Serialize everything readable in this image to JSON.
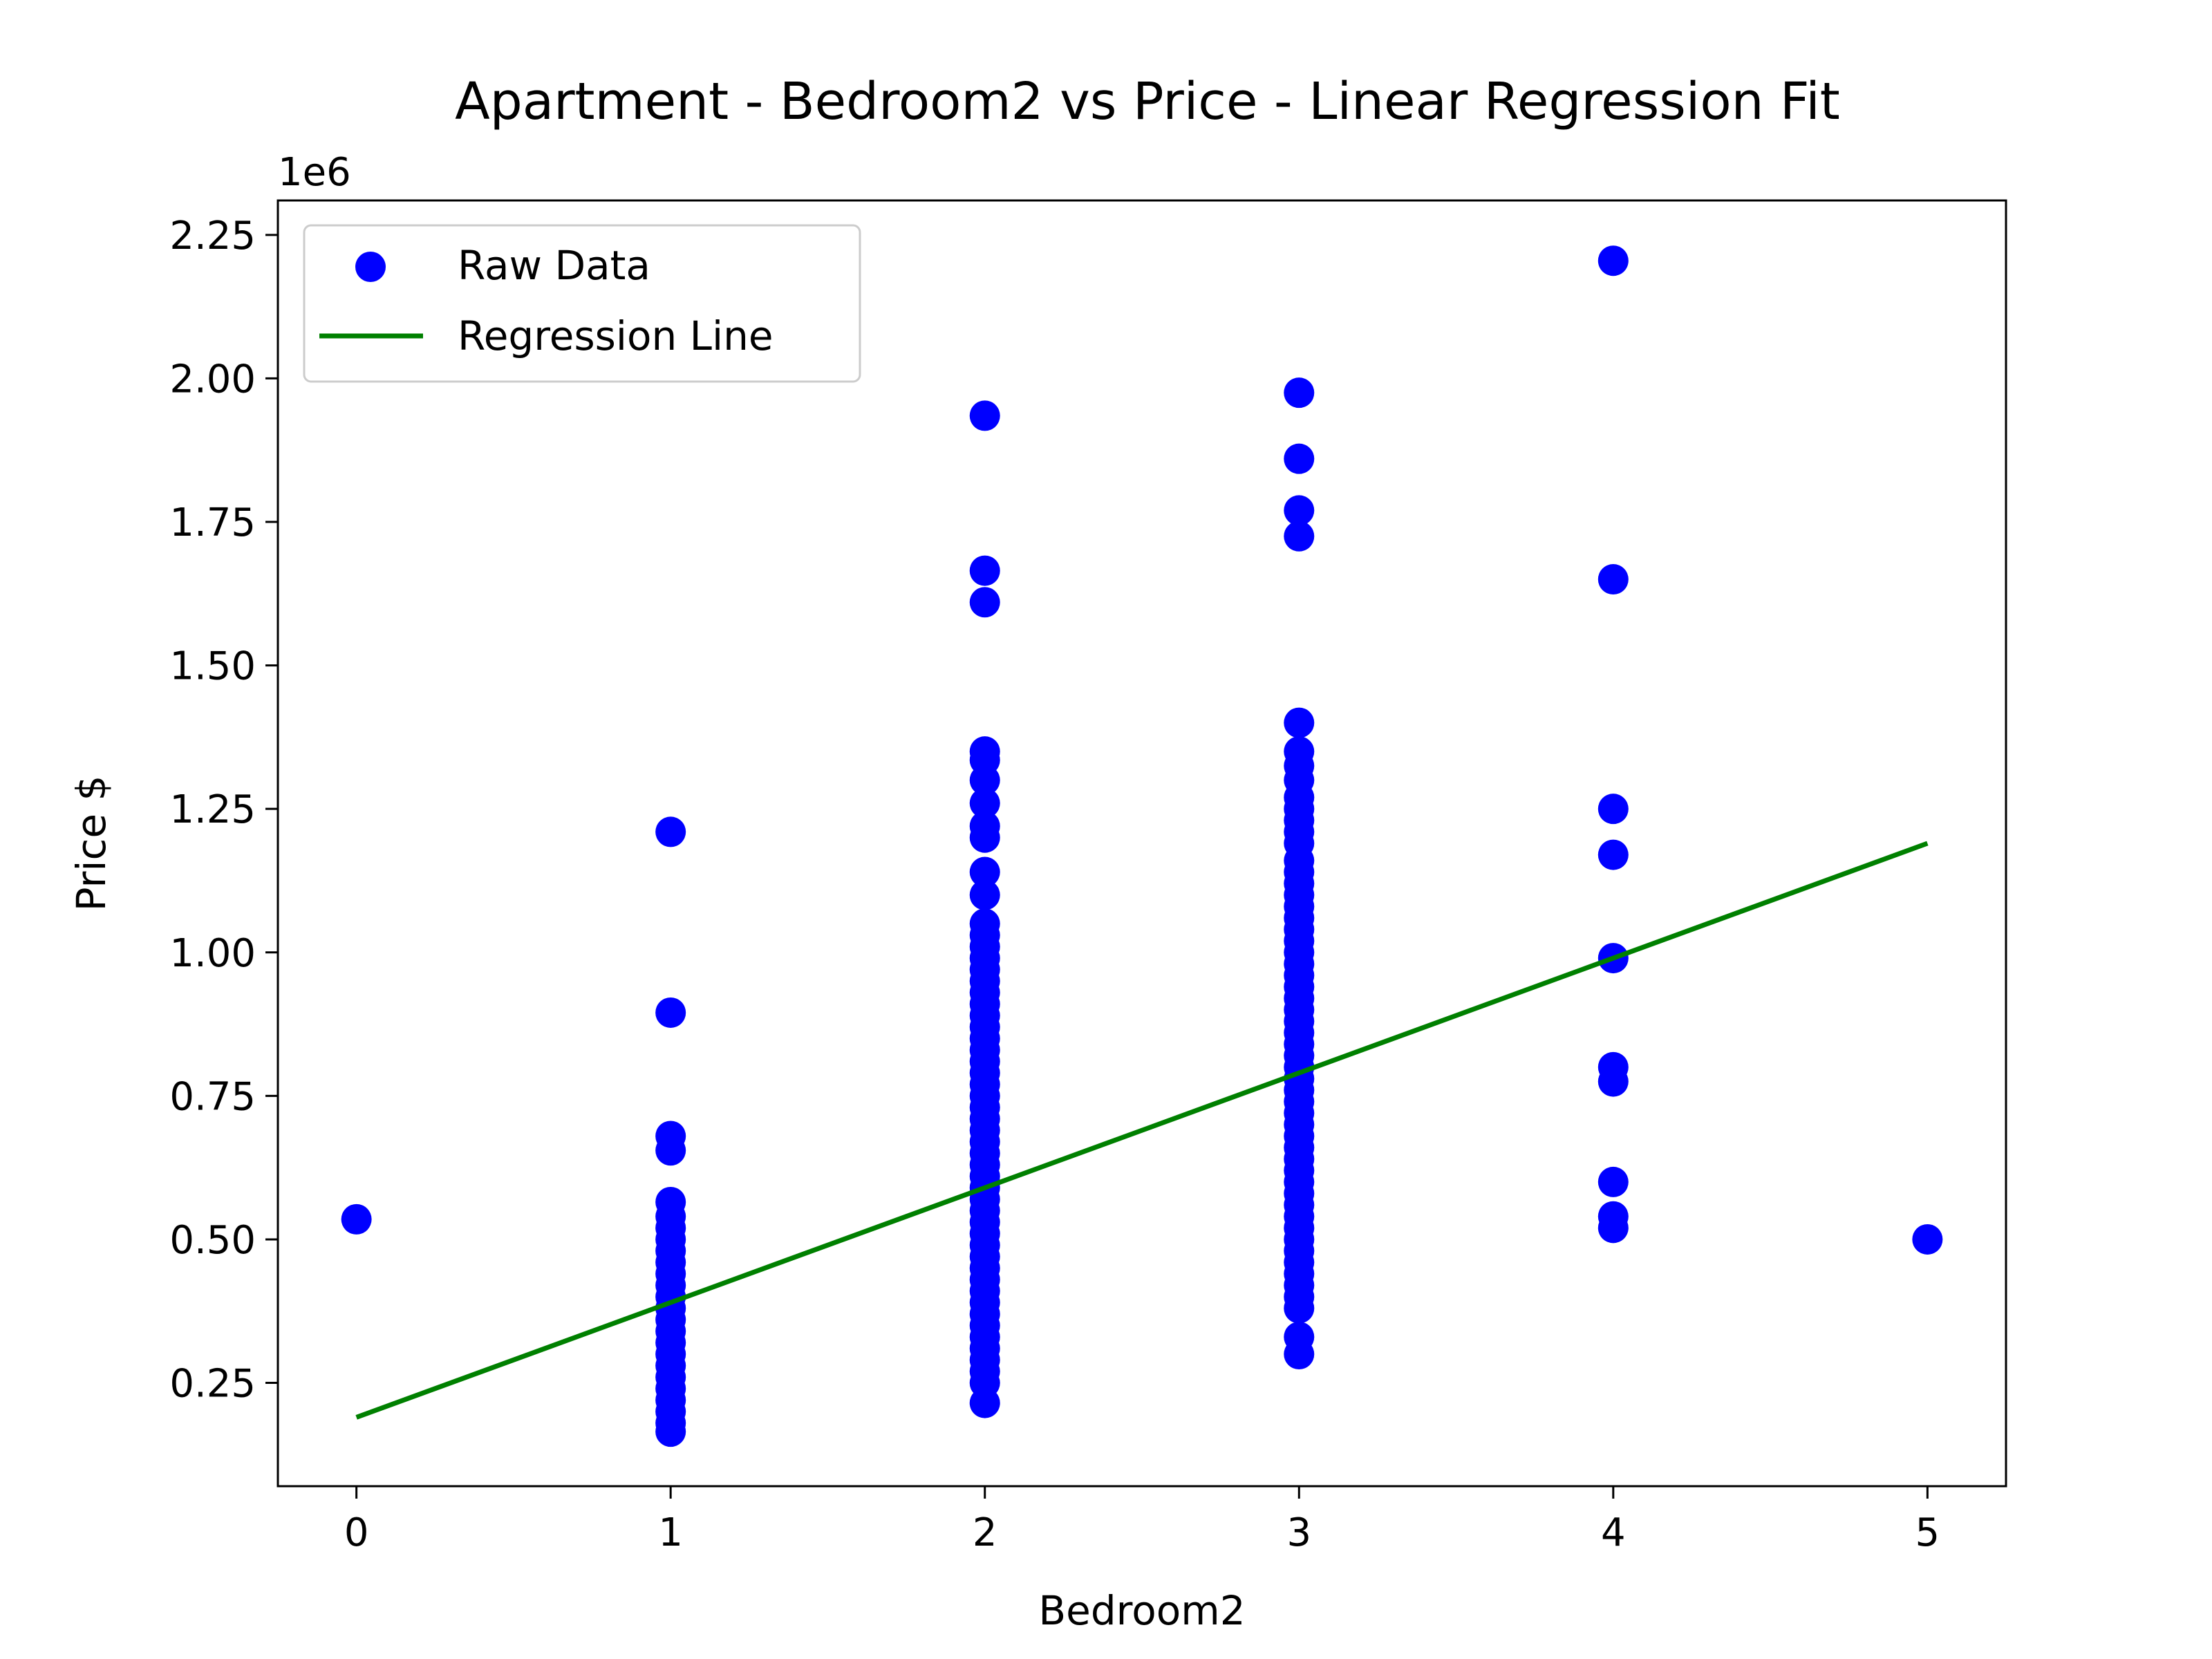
{
  "chart_data": {
    "type": "scatter",
    "title": "Apartment - Bedroom2 vs Price - Linear Regression Fit",
    "xlabel": "Bedroom2",
    "ylabel": "Price $",
    "y_offset_label": "1e6",
    "xlim": [
      -0.25,
      5.25
    ],
    "ylim": [
      0.07,
      2.31
    ],
    "x_ticks": [
      0,
      1,
      2,
      3,
      4,
      5
    ],
    "x_tick_labels": [
      "0",
      "1",
      "2",
      "3",
      "4",
      "5"
    ],
    "y_ticks": [
      0.25,
      0.5,
      0.75,
      1.0,
      1.25,
      1.5,
      1.75,
      2.0,
      2.25
    ],
    "y_tick_labels": [
      "0.25",
      "0.50",
      "0.75",
      "1.00",
      "1.25",
      "1.50",
      "1.75",
      "2.00",
      "2.25"
    ],
    "grid": false,
    "legend_position": "top-left",
    "legend": [
      "Raw Data",
      "Regression Line"
    ],
    "series": [
      {
        "name": "Raw Data",
        "kind": "scatter",
        "color": "#0000ff",
        "points": [
          [
            0,
            0.535
          ],
          [
            1,
            0.165
          ],
          [
            1,
            0.18
          ],
          [
            1,
            0.2
          ],
          [
            1,
            0.22
          ],
          [
            1,
            0.24
          ],
          [
            1,
            0.26
          ],
          [
            1,
            0.28
          ],
          [
            1,
            0.3
          ],
          [
            1,
            0.32
          ],
          [
            1,
            0.34
          ],
          [
            1,
            0.36
          ],
          [
            1,
            0.38
          ],
          [
            1,
            0.4
          ],
          [
            1,
            0.42
          ],
          [
            1,
            0.44
          ],
          [
            1,
            0.46
          ],
          [
            1,
            0.48
          ],
          [
            1,
            0.5
          ],
          [
            1,
            0.52
          ],
          [
            1,
            0.54
          ],
          [
            1,
            0.565
          ],
          [
            1,
            0.655
          ],
          [
            1,
            0.68
          ],
          [
            1,
            0.895
          ],
          [
            1,
            1.21
          ],
          [
            2,
            0.215
          ],
          [
            2,
            0.25
          ],
          [
            2,
            0.27
          ],
          [
            2,
            0.29
          ],
          [
            2,
            0.31
          ],
          [
            2,
            0.33
          ],
          [
            2,
            0.35
          ],
          [
            2,
            0.37
          ],
          [
            2,
            0.39
          ],
          [
            2,
            0.41
          ],
          [
            2,
            0.43
          ],
          [
            2,
            0.45
          ],
          [
            2,
            0.47
          ],
          [
            2,
            0.49
          ],
          [
            2,
            0.51
          ],
          [
            2,
            0.53
          ],
          [
            2,
            0.55
          ],
          [
            2,
            0.57
          ],
          [
            2,
            0.59
          ],
          [
            2,
            0.61
          ],
          [
            2,
            0.63
          ],
          [
            2,
            0.65
          ],
          [
            2,
            0.67
          ],
          [
            2,
            0.69
          ],
          [
            2,
            0.71
          ],
          [
            2,
            0.73
          ],
          [
            2,
            0.75
          ],
          [
            2,
            0.77
          ],
          [
            2,
            0.79
          ],
          [
            2,
            0.81
          ],
          [
            2,
            0.83
          ],
          [
            2,
            0.85
          ],
          [
            2,
            0.87
          ],
          [
            2,
            0.89
          ],
          [
            2,
            0.91
          ],
          [
            2,
            0.93
          ],
          [
            2,
            0.95
          ],
          [
            2,
            0.97
          ],
          [
            2,
            0.99
          ],
          [
            2,
            1.01
          ],
          [
            2,
            1.03
          ],
          [
            2,
            1.05
          ],
          [
            2,
            1.1
          ],
          [
            2,
            1.14
          ],
          [
            2,
            1.2
          ],
          [
            2,
            1.22
          ],
          [
            2,
            1.26
          ],
          [
            2,
            1.3
          ],
          [
            2,
            1.335
          ],
          [
            2,
            1.35
          ],
          [
            2,
            1.61
          ],
          [
            2,
            1.665
          ],
          [
            2,
            1.935
          ],
          [
            3,
            0.3
          ],
          [
            3,
            0.33
          ],
          [
            3,
            0.38
          ],
          [
            3,
            0.4
          ],
          [
            3,
            0.42
          ],
          [
            3,
            0.44
          ],
          [
            3,
            0.46
          ],
          [
            3,
            0.48
          ],
          [
            3,
            0.5
          ],
          [
            3,
            0.52
          ],
          [
            3,
            0.54
          ],
          [
            3,
            0.56
          ],
          [
            3,
            0.58
          ],
          [
            3,
            0.6
          ],
          [
            3,
            0.62
          ],
          [
            3,
            0.64
          ],
          [
            3,
            0.66
          ],
          [
            3,
            0.68
          ],
          [
            3,
            0.7
          ],
          [
            3,
            0.72
          ],
          [
            3,
            0.74
          ],
          [
            3,
            0.76
          ],
          [
            3,
            0.78
          ],
          [
            3,
            0.8
          ],
          [
            3,
            0.82
          ],
          [
            3,
            0.84
          ],
          [
            3,
            0.86
          ],
          [
            3,
            0.88
          ],
          [
            3,
            0.9
          ],
          [
            3,
            0.92
          ],
          [
            3,
            0.94
          ],
          [
            3,
            0.96
          ],
          [
            3,
            0.98
          ],
          [
            3,
            1.0
          ],
          [
            3,
            1.02
          ],
          [
            3,
            1.04
          ],
          [
            3,
            1.06
          ],
          [
            3,
            1.08
          ],
          [
            3,
            1.1
          ],
          [
            3,
            1.12
          ],
          [
            3,
            1.14
          ],
          [
            3,
            1.16
          ],
          [
            3,
            1.19
          ],
          [
            3,
            1.21
          ],
          [
            3,
            1.23
          ],
          [
            3,
            1.25
          ],
          [
            3,
            1.27
          ],
          [
            3,
            1.3
          ],
          [
            3,
            1.325
          ],
          [
            3,
            1.35
          ],
          [
            3,
            1.4
          ],
          [
            3,
            1.725
          ],
          [
            3,
            1.77
          ],
          [
            3,
            1.86
          ],
          [
            3,
            1.975
          ],
          [
            4,
            0.52
          ],
          [
            4,
            0.54
          ],
          [
            4,
            0.6
          ],
          [
            4,
            0.775
          ],
          [
            4,
            0.8
          ],
          [
            4,
            0.99
          ],
          [
            4,
            1.17
          ],
          [
            4,
            1.25
          ],
          [
            4,
            1.65
          ],
          [
            4,
            2.205
          ],
          [
            5,
            0.5
          ]
        ]
      },
      {
        "name": "Regression Line",
        "kind": "line",
        "color": "#008000",
        "points": [
          [
            0,
            0.19
          ],
          [
            5,
            1.19
          ]
        ]
      }
    ]
  }
}
